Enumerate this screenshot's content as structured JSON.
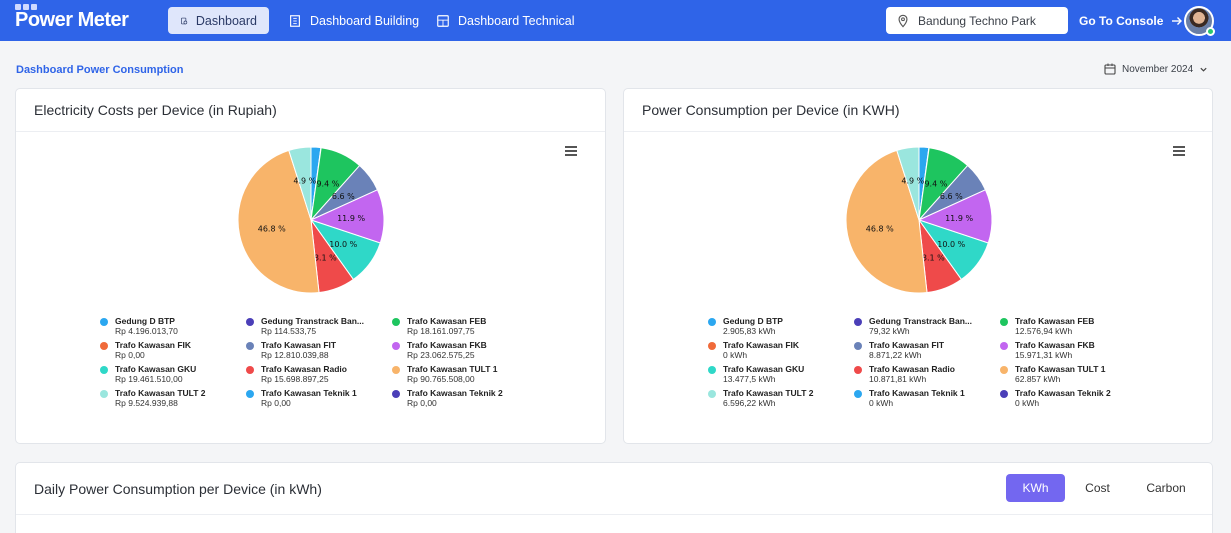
{
  "app": {
    "brand": "Power Meter"
  },
  "nav": {
    "tabs": [
      {
        "label": "Dashboard",
        "icon": "document-chart-icon",
        "active": true
      },
      {
        "label": "Dashboard Building",
        "icon": "building-icon",
        "active": false
      },
      {
        "label": "Dashboard Technical",
        "icon": "grid-icon",
        "active": false
      }
    ],
    "location": "Bandung Techno Park",
    "console": "Go To Console"
  },
  "page": {
    "title": "Dashboard Power Consumption",
    "month": "November 2024"
  },
  "colors": {
    "primary": "#2f64e8",
    "accent": "#7367f0",
    "online": "#28c76f"
  },
  "cost_card": {
    "title": "Electricity Costs per Device (in Rupiah)",
    "legend": [
      {
        "name": "Gedung D BTP",
        "value": "Rp 4.196.013,70",
        "color": "#2ba7f0"
      },
      {
        "name": "Gedung Transtrack Ban...",
        "value": "Rp 114.533,75",
        "color": "#4b3fb8"
      },
      {
        "name": "Trafo Kawasan FEB",
        "value": "Rp 18.161.097,75",
        "color": "#1ec55f"
      },
      {
        "name": "Trafo Kawasan FIK",
        "value": "Rp 0,00",
        "color": "#f06a3a"
      },
      {
        "name": "Trafo Kawasan FIT",
        "value": "Rp 12.810.039,88",
        "color": "#6a82b8"
      },
      {
        "name": "Trafo Kawasan FKB",
        "value": "Rp 23.062.575,25",
        "color": "#c266f0"
      },
      {
        "name": "Trafo Kawasan GKU",
        "value": "Rp 19.461.510,00",
        "color": "#2fd8c8"
      },
      {
        "name": "Trafo Kawasan Radio",
        "value": "Rp 15.698.897,25",
        "color": "#ef4a4a"
      },
      {
        "name": "Trafo Kawasan TULT 1",
        "value": "Rp 90.765.508,00",
        "color": "#f8b46a"
      },
      {
        "name": "Trafo Kawasan TULT 2",
        "value": "Rp 9.524.939,88",
        "color": "#9ae6de"
      },
      {
        "name": "Trafo Kawasan Teknik 1",
        "value": "Rp 0,00",
        "color": "#2ba7f0"
      },
      {
        "name": "Trafo Kawasan Teknik 2",
        "value": "Rp 0,00",
        "color": "#4b3fb8"
      }
    ]
  },
  "energy_card": {
    "title": "Power Consumption per Device (in KWH)",
    "legend": [
      {
        "name": "Gedung D BTP",
        "value": "2.905,83 kWh",
        "color": "#2ba7f0"
      },
      {
        "name": "Gedung Transtrack Ban...",
        "value": "79,32 kWh",
        "color": "#4b3fb8"
      },
      {
        "name": "Trafo Kawasan FEB",
        "value": "12.576,94 kWh",
        "color": "#1ec55f"
      },
      {
        "name": "Trafo Kawasan FIK",
        "value": "0 kWh",
        "color": "#f06a3a"
      },
      {
        "name": "Trafo Kawasan FIT",
        "value": "8.871,22 kWh",
        "color": "#6a82b8"
      },
      {
        "name": "Trafo Kawasan FKB",
        "value": "15.971,31 kWh",
        "color": "#c266f0"
      },
      {
        "name": "Trafo Kawasan GKU",
        "value": "13.477,5 kWh",
        "color": "#2fd8c8"
      },
      {
        "name": "Trafo Kawasan Radio",
        "value": "10.871,81 kWh",
        "color": "#ef4a4a"
      },
      {
        "name": "Trafo Kawasan TULT 1",
        "value": "62.857 kWh",
        "color": "#f8b46a"
      },
      {
        "name": "Trafo Kawasan TULT 2",
        "value": "6.596,22 kWh",
        "color": "#9ae6de"
      },
      {
        "name": "Trafo Kawasan Teknik 1",
        "value": "0 kWh",
        "color": "#2ba7f0"
      },
      {
        "name": "Trafo Kawasan Teknik 2",
        "value": "0 kWh",
        "color": "#4b3fb8"
      }
    ]
  },
  "daily_card": {
    "title": "Daily Power Consumption per Device (in kWh)",
    "toggles": [
      {
        "label": "KWh",
        "active": true
      },
      {
        "label": "Cost",
        "active": false
      },
      {
        "label": "Carbon",
        "active": false
      }
    ]
  },
  "chart_data": [
    {
      "type": "pie",
      "title": "Electricity Costs per Device (in Rupiah)",
      "categories": [
        "Gedung D BTP",
        "Gedung Transtrack Ban...",
        "Trafo Kawasan FEB",
        "Trafo Kawasan FIK",
        "Trafo Kawasan FIT",
        "Trafo Kawasan FKB",
        "Trafo Kawasan GKU",
        "Trafo Kawasan Radio",
        "Trafo Kawasan TULT 1",
        "Trafo Kawasan TULT 2",
        "Trafo Kawasan Teknik 1",
        "Trafo Kawasan Teknik 2"
      ],
      "values": [
        4196013.7,
        114533.75,
        18161097.75,
        0,
        12810039.88,
        23062575.25,
        19461510.0,
        15698897.25,
        90765508.0,
        9524939.88,
        0,
        0
      ],
      "colors": [
        "#2ba7f0",
        "#4b3fb8",
        "#1ec55f",
        "#f06a3a",
        "#6a82b8",
        "#c266f0",
        "#2fd8c8",
        "#ef4a4a",
        "#f8b46a",
        "#9ae6de",
        "#2ba7f0",
        "#4b3fb8"
      ],
      "slice_labels": [
        "",
        "",
        "9.4 %",
        "",
        "6.6 %",
        "11.9 %",
        "10.0 %",
        "8.1 %",
        "46.8 %",
        "4.9 %",
        "",
        ""
      ]
    },
    {
      "type": "pie",
      "title": "Power Consumption per Device (in KWH)",
      "categories": [
        "Gedung D BTP",
        "Gedung Transtrack Ban...",
        "Trafo Kawasan FEB",
        "Trafo Kawasan FIK",
        "Trafo Kawasan FIT",
        "Trafo Kawasan FKB",
        "Trafo Kawasan GKU",
        "Trafo Kawasan Radio",
        "Trafo Kawasan TULT 1",
        "Trafo Kawasan TULT 2",
        "Trafo Kawasan Teknik 1",
        "Trafo Kawasan Teknik 2"
      ],
      "values": [
        2905.83,
        79.32,
        12576.94,
        0,
        8871.22,
        15971.31,
        13477.5,
        10871.81,
        62857,
        6596.22,
        0,
        0
      ],
      "colors": [
        "#2ba7f0",
        "#4b3fb8",
        "#1ec55f",
        "#f06a3a",
        "#6a82b8",
        "#c266f0",
        "#2fd8c8",
        "#ef4a4a",
        "#f8b46a",
        "#9ae6de",
        "#2ba7f0",
        "#4b3fb8"
      ],
      "slice_labels": [
        "",
        "",
        "9.4 %",
        "",
        "6.6 %",
        "11.9 %",
        "10.0 %",
        "8.1 %",
        "46.8 %",
        "4.9 %",
        "",
        ""
      ]
    }
  ]
}
